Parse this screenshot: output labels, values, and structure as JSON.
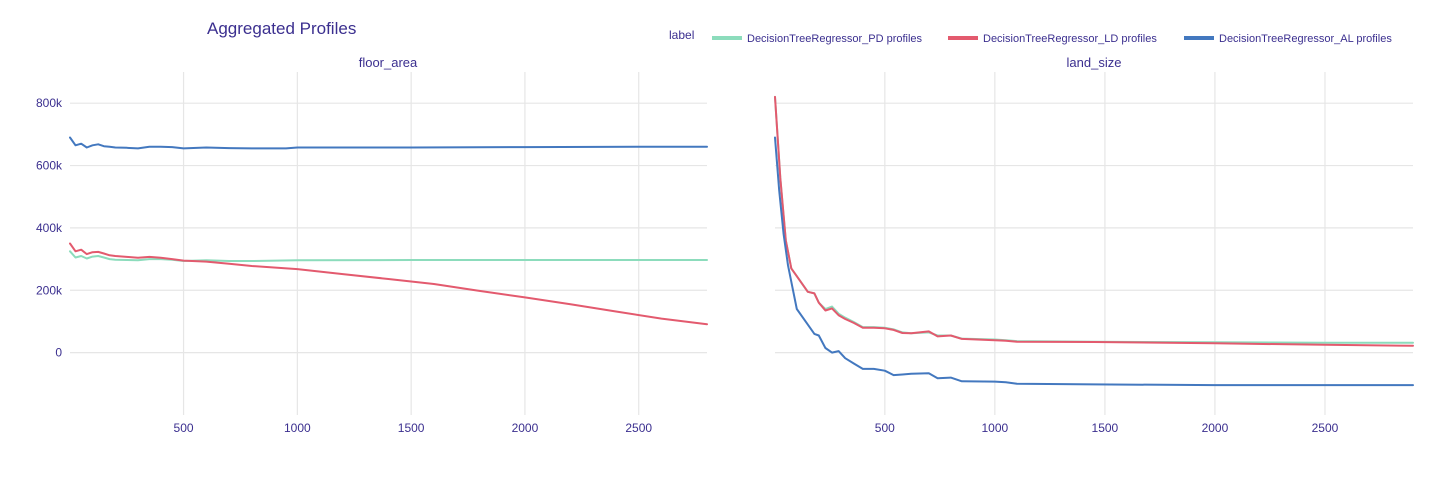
{
  "chart_data": {
    "type": "line",
    "title": "Aggregated Profiles",
    "legend": {
      "title": "label",
      "placement": "top-right",
      "entries": [
        {
          "name": "DecisionTreeRegressor_PD profiles",
          "color": "#8cdcbc"
        },
        {
          "name": "DecisionTreeRegressor_LD profiles",
          "color": "#e35a6e"
        },
        {
          "name": "DecisionTreeRegressor_AL profiles",
          "color": "#4378bf"
        }
      ]
    },
    "grid": true,
    "panels": [
      {
        "title": "floor_area",
        "xlim": [
          1,
          2800
        ],
        "ylim": [
          -200000,
          900000
        ],
        "xticks": [
          {
            "value": 500,
            "label": "500"
          },
          {
            "value": 1000,
            "label": "1000"
          },
          {
            "value": 1500,
            "label": "1500"
          },
          {
            "value": 2000,
            "label": "2000"
          },
          {
            "value": 2500,
            "label": "2500"
          }
        ],
        "yticks": [
          {
            "value": 0,
            "label": "0"
          },
          {
            "value": 200000,
            "label": "200k"
          },
          {
            "value": 400000,
            "label": "400k"
          },
          {
            "value": 600000,
            "label": "600k"
          },
          {
            "value": 800000,
            "label": "800k"
          }
        ],
        "series": [
          {
            "name": "DecisionTreeRegressor_PD profiles",
            "x": [
              1,
              25,
              50,
              75,
              100,
              125,
              150,
              175,
              200,
              250,
              300,
              350,
              400,
              450,
              500,
              600,
              700,
              800,
              1000,
              1500,
              2000,
              2500,
              2800
            ],
            "y": [
              325000,
              305000,
              310000,
              302000,
              308000,
              310000,
              305000,
              300000,
              298000,
              297000,
              296000,
              300000,
              300000,
              298000,
              294000,
              296000,
              294000,
              294000,
              296000,
              297000,
              297000,
              297000,
              297000
            ]
          },
          {
            "name": "DecisionTreeRegressor_LD profiles",
            "x": [
              1,
              25,
              50,
              75,
              100,
              125,
              150,
              175,
              200,
              250,
              300,
              350,
              400,
              450,
              500,
              600,
              700,
              800,
              1000,
              1200,
              1400,
              1600,
              1800,
              2000,
              2200,
              2400,
              2600,
              2800
            ],
            "y": [
              350000,
              325000,
              330000,
              316000,
              322000,
              323000,
              318000,
              312000,
              310000,
              307000,
              304000,
              307000,
              304000,
              300000,
              295000,
              292000,
              285000,
              278000,
              268000,
              252000,
              236000,
              220000,
              198000,
              177000,
              155000,
              132000,
              109000,
              91000
            ]
          },
          {
            "name": "DecisionTreeRegressor_AL profiles",
            "x": [
              1,
              25,
              50,
              75,
              100,
              125,
              150,
              175,
              200,
              250,
              300,
              350,
              400,
              450,
              500,
              600,
              700,
              800,
              950,
              1000,
              1500,
              2000,
              2500,
              2800
            ],
            "y": [
              690000,
              665000,
              670000,
              658000,
              665000,
              668000,
              662000,
              660000,
              658000,
              657000,
              655000,
              660000,
              660000,
              659000,
              655000,
              658000,
              656000,
              655000,
              655000,
              658000,
              658000,
              659000,
              660000,
              660000
            ]
          }
        ]
      },
      {
        "title": "land_size",
        "xlim": [
          1,
          2900
        ],
        "ylim": [
          -200000,
          900000
        ],
        "xticks": [
          {
            "value": 500,
            "label": "500"
          },
          {
            "value": 1000,
            "label": "1000"
          },
          {
            "value": 1500,
            "label": "1500"
          },
          {
            "value": 2000,
            "label": "2000"
          },
          {
            "value": 2500,
            "label": "2500"
          }
        ],
        "yticks": [
          {
            "value": 0,
            "label": ""
          },
          {
            "value": 200000,
            "label": ""
          },
          {
            "value": 400000,
            "label": ""
          },
          {
            "value": 600000,
            "label": ""
          },
          {
            "value": 800000,
            "label": ""
          }
        ],
        "series": [
          {
            "name": "DecisionTreeRegressor_PD profiles",
            "x": [
              1,
              25,
              50,
              75,
              100,
              150,
              180,
              200,
              230,
              260,
              290,
              320,
              360,
              400,
              450,
              500,
              540,
              580,
              620,
              700,
              740,
              800,
              850,
              1000,
              1050,
              1100,
              1450,
              2000,
              2500,
              2900
            ],
            "y": [
              820000,
              560000,
              360000,
              270000,
              245000,
              195000,
              190000,
              160000,
              140000,
              148000,
              125000,
              112000,
              98000,
              82000,
              82000,
              80000,
              75000,
              65000,
              62000,
              65000,
              55000,
              55000,
              45000,
              42000,
              40000,
              37000,
              35000,
              33000,
              32000,
              32000
            ]
          },
          {
            "name": "DecisionTreeRegressor_LD profiles",
            "x": [
              1,
              25,
              50,
              75,
              100,
              150,
              180,
              200,
              230,
              260,
              290,
              320,
              360,
              400,
              450,
              500,
              540,
              580,
              620,
              700,
              740,
              800,
              850,
              1000,
              1050,
              1100,
              1450,
              2000,
              2500,
              2900
            ],
            "y": [
              820000,
              560000,
              360000,
              270000,
              245000,
              195000,
              190000,
              160000,
              135000,
              142000,
              120000,
              108000,
              95000,
              80000,
              80000,
              78000,
              73000,
              63000,
              62000,
              68000,
              52000,
              55000,
              44000,
              40000,
              38000,
              35000,
              34000,
              30000,
              25000,
              22000
            ]
          },
          {
            "name": "DecisionTreeRegressor_AL profiles",
            "x": [
              1,
              20,
              40,
              60,
              80,
              100,
              150,
              180,
              200,
              230,
              260,
              290,
              320,
              360,
              400,
              450,
              500,
              540,
              580,
              620,
              700,
              740,
              800,
              850,
              1000,
              1050,
              1100,
              1450,
              2000,
              2500,
              2900
            ],
            "y": [
              690000,
              520000,
              380000,
              280000,
              210000,
              140000,
              90000,
              60000,
              55000,
              15000,
              0,
              5000,
              -18000,
              -35000,
              -52000,
              -52000,
              -58000,
              -72000,
              -70000,
              -68000,
              -66000,
              -82000,
              -80000,
              -92000,
              -93000,
              -95000,
              -100000,
              -102000,
              -104000,
              -104000,
              -104000
            ]
          }
        ]
      }
    ]
  }
}
